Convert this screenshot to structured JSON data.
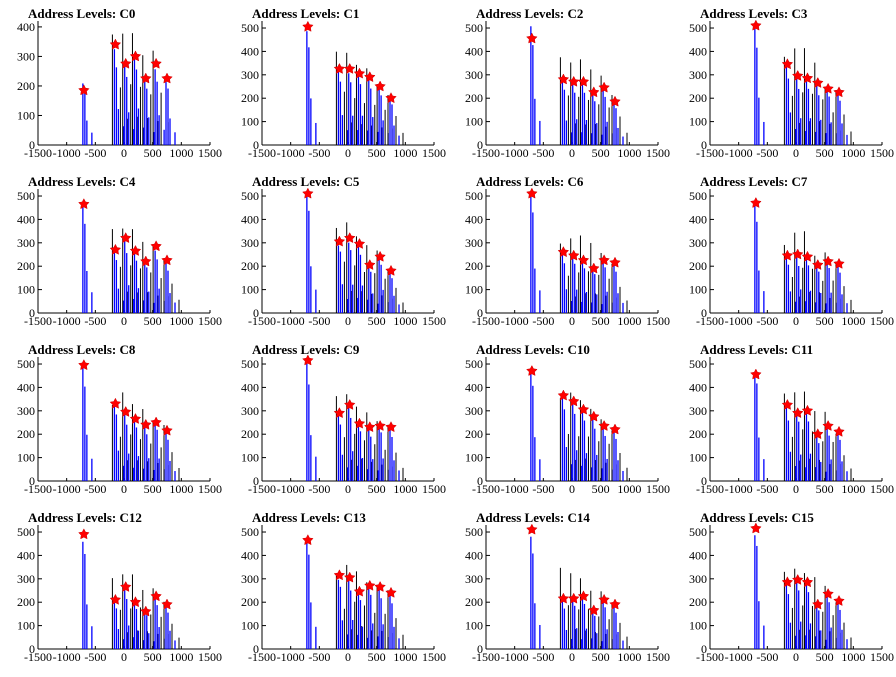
{
  "chart_data": [
    {
      "type": "bar",
      "title": "Address Levels: C0",
      "xlim": [
        -1500,
        1500
      ],
      "ylim": [
        0,
        420
      ],
      "yticks": [
        0,
        100,
        200,
        300,
        400
      ],
      "xticks": [
        -1500,
        -1000,
        -500,
        0,
        500,
        1000,
        1500
      ],
      "marker_x": [
        -700,
        -150,
        30,
        200,
        380,
        560,
        750
      ],
      "marker_y": [
        185,
        340,
        275,
        300,
        225,
        275,
        225
      ],
      "black_max": [
        0,
        380,
        395,
        380,
        335,
        330,
        0
      ],
      "blue_max": [
        215,
        330,
        280,
        310,
        235,
        270,
        230
      ]
    },
    {
      "type": "bar",
      "title": "Address Levels: C1",
      "xlim": [
        -1500,
        1500
      ],
      "ylim": [
        0,
        530
      ],
      "yticks": [
        0,
        100,
        200,
        300,
        400,
        500
      ],
      "xticks": [
        -1500,
        -1000,
        -500,
        0,
        500,
        1000,
        1500
      ],
      "marker_x": [
        -700,
        -150,
        30,
        200,
        380,
        560,
        750
      ],
      "marker_y": [
        505,
        325,
        325,
        305,
        290,
        250,
        200
      ],
      "black_max": [
        0,
        420,
        395,
        345,
        330,
        285,
        230
      ],
      "blue_max": [
        500,
        330,
        320,
        315,
        300,
        265,
        215
      ]
    },
    {
      "type": "bar",
      "title": "Address Levels: C2",
      "xlim": [
        -1500,
        1500
      ],
      "ylim": [
        0,
        530
      ],
      "yticks": [
        0,
        100,
        200,
        300,
        400,
        500
      ],
      "xticks": [
        -1500,
        -1000,
        -500,
        0,
        500,
        1000,
        1500
      ],
      "marker_x": [
        -700,
        -150,
        30,
        200,
        380,
        560,
        750
      ],
      "marker_y": [
        455,
        280,
        270,
        270,
        225,
        245,
        185
      ],
      "black_max": [
        0,
        410,
        375,
        370,
        330,
        310,
        225
      ],
      "blue_max": [
        520,
        280,
        285,
        270,
        235,
        255,
        195
      ]
    },
    {
      "type": "bar",
      "title": "Address Levels: C3",
      "xlim": [
        -1500,
        1500
      ],
      "ylim": [
        0,
        530
      ],
      "yticks": [
        0,
        100,
        200,
        300,
        400,
        500
      ],
      "xticks": [
        -1500,
        -1000,
        -500,
        0,
        500,
        1000,
        1500
      ],
      "marker_x": [
        -700,
        -150,
        30,
        200,
        380,
        560,
        750
      ],
      "marker_y": [
        510,
        345,
        295,
        285,
        265,
        240,
        225
      ],
      "black_max": [
        0,
        385,
        420,
        420,
        365,
        275,
        240
      ],
      "blue_max": [
        515,
        355,
        300,
        290,
        270,
        255,
        235
      ]
    },
    {
      "type": "bar",
      "title": "Address Levels: C4",
      "xlim": [
        -1500,
        1500
      ],
      "ylim": [
        0,
        530
      ],
      "yticks": [
        0,
        100,
        200,
        300,
        400,
        500
      ],
      "xticks": [
        -1500,
        -1000,
        -500,
        0,
        500,
        1000,
        1500
      ],
      "marker_x": [
        -700,
        -150,
        30,
        200,
        380,
        560,
        750
      ],
      "marker_y": [
        465,
        270,
        320,
        265,
        220,
        285,
        225
      ],
      "black_max": [
        0,
        380,
        390,
        365,
        320,
        300,
        230
      ],
      "blue_max": [
        480,
        275,
        315,
        270,
        230,
        280,
        225
      ]
    },
    {
      "type": "bar",
      "title": "Address Levels: C5",
      "xlim": [
        -1500,
        1500
      ],
      "ylim": [
        0,
        530
      ],
      "yticks": [
        0,
        100,
        200,
        300,
        400,
        500
      ],
      "xticks": [
        -1500,
        -1000,
        -500,
        0,
        500,
        1000,
        1500
      ],
      "marker_x": [
        -700,
        -150,
        30,
        200,
        380,
        560,
        750
      ],
      "marker_y": [
        510,
        305,
        320,
        295,
        205,
        240,
        180
      ],
      "black_max": [
        0,
        400,
        400,
        335,
        310,
        270,
        195
      ],
      "blue_max": [
        515,
        310,
        325,
        300,
        210,
        250,
        185
      ]
    },
    {
      "type": "bar",
      "title": "Address Levels: C6",
      "xlim": [
        -1500,
        1500
      ],
      "ylim": [
        0,
        530
      ],
      "yticks": [
        0,
        100,
        200,
        300,
        400,
        500
      ],
      "xticks": [
        -1500,
        -1000,
        -500,
        0,
        500,
        1000,
        1500
      ],
      "marker_x": [
        -700,
        -150,
        30,
        200,
        380,
        560,
        750
      ],
      "marker_y": [
        510,
        260,
        245,
        225,
        190,
        225,
        215
      ],
      "black_max": [
        0,
        305,
        350,
        340,
        325,
        275,
        225
      ],
      "blue_max": [
        515,
        265,
        250,
        230,
        200,
        235,
        220
      ]
    },
    {
      "type": "bar",
      "title": "Address Levels: C7",
      "xlim": [
        -1500,
        1500
      ],
      "ylim": [
        0,
        530
      ],
      "yticks": [
        0,
        100,
        200,
        300,
        400,
        500
      ],
      "xticks": [
        -1500,
        -1000,
        -500,
        0,
        500,
        1000,
        1500
      ],
      "marker_x": [
        -700,
        -150,
        30,
        200,
        380,
        560,
        750
      ],
      "marker_y": [
        470,
        245,
        250,
        240,
        205,
        220,
        210
      ],
      "black_max": [
        0,
        310,
        360,
        360,
        270,
        265,
        230
      ],
      "blue_max": [
        475,
        250,
        255,
        245,
        215,
        230,
        215
      ]
    },
    {
      "type": "bar",
      "title": "Address Levels: C8",
      "xlim": [
        -1500,
        1500
      ],
      "ylim": [
        0,
        530
      ],
      "yticks": [
        0,
        100,
        200,
        300,
        400,
        500
      ],
      "xticks": [
        -1500,
        -1000,
        -500,
        0,
        500,
        1000,
        1500
      ],
      "marker_x": [
        -700,
        -150,
        30,
        200,
        380,
        560,
        750
      ],
      "marker_y": [
        495,
        330,
        295,
        265,
        240,
        250,
        215
      ],
      "black_max": [
        0,
        360,
        380,
        340,
        310,
        280,
        245
      ],
      "blue_max": [
        500,
        335,
        300,
        275,
        245,
        260,
        220
      ]
    },
    {
      "type": "bar",
      "title": "Address Levels: C9",
      "xlim": [
        -1500,
        1500
      ],
      "ylim": [
        0,
        530
      ],
      "yticks": [
        0,
        100,
        200,
        300,
        400,
        500
      ],
      "xticks": [
        -1500,
        -1000,
        -500,
        0,
        500,
        1000,
        1500
      ],
      "marker_x": [
        -700,
        -150,
        30,
        200,
        380,
        560,
        750
      ],
      "marker_y": [
        515,
        290,
        325,
        245,
        230,
        235,
        230
      ],
      "black_max": [
        0,
        375,
        395,
        330,
        300,
        265,
        240
      ],
      "blue_max": [
        520,
        300,
        330,
        255,
        235,
        245,
        235
      ]
    },
    {
      "type": "bar",
      "title": "Address Levels: C10",
      "xlim": [
        -1500,
        1500
      ],
      "ylim": [
        0,
        530
      ],
      "yticks": [
        0,
        100,
        200,
        300,
        400,
        500
      ],
      "xticks": [
        -1500,
        -1000,
        -500,
        0,
        500,
        1000,
        1500
      ],
      "marker_x": [
        -700,
        -150,
        30,
        200,
        380,
        560,
        750
      ],
      "marker_y": [
        470,
        365,
        340,
        305,
        275,
        235,
        220
      ],
      "black_max": [
        0,
        380,
        385,
        360,
        320,
        290,
        235
      ],
      "blue_max": [
        480,
        370,
        345,
        310,
        280,
        245,
        225
      ]
    },
    {
      "type": "bar",
      "title": "Address Levels: C11",
      "xlim": [
        -1500,
        1500
      ],
      "ylim": [
        0,
        530
      ],
      "yticks": [
        0,
        100,
        200,
        300,
        400,
        500
      ],
      "xticks": [
        -1500,
        -1000,
        -500,
        0,
        500,
        1000,
        1500
      ],
      "marker_x": [
        -700,
        -150,
        30,
        200,
        380,
        560,
        750
      ],
      "marker_y": [
        455,
        325,
        290,
        300,
        200,
        235,
        210
      ],
      "black_max": [
        0,
        375,
        410,
        400,
        315,
        310,
        215
      ],
      "blue_max": [
        500,
        330,
        300,
        305,
        205,
        245,
        220
      ]
    },
    {
      "type": "bar",
      "title": "Address Levels: C12",
      "xlim": [
        -1500,
        1500
      ],
      "ylim": [
        0,
        530
      ],
      "yticks": [
        0,
        100,
        200,
        300,
        400,
        500
      ],
      "xticks": [
        -1500,
        -1000,
        -500,
        0,
        500,
        1000,
        1500
      ],
      "marker_x": [
        -700,
        -150,
        30,
        200,
        380,
        560,
        750
      ],
      "marker_y": [
        490,
        210,
        265,
        200,
        160,
        225,
        190
      ],
      "black_max": [
        0,
        315,
        330,
        335,
        270,
        260,
        210
      ],
      "blue_max": [
        495,
        215,
        270,
        205,
        170,
        235,
        195
      ]
    },
    {
      "type": "bar",
      "title": "Address Levels: C13",
      "xlim": [
        -1500,
        1500
      ],
      "ylim": [
        0,
        530
      ],
      "yticks": [
        0,
        100,
        200,
        300,
        400,
        500
      ],
      "xticks": [
        -1500,
        -1000,
        -500,
        0,
        500,
        1000,
        1500
      ],
      "marker_x": [
        -700,
        -150,
        30,
        200,
        380,
        560,
        750
      ],
      "marker_y": [
        465,
        315,
        305,
        245,
        270,
        265,
        240
      ],
      "black_max": [
        0,
        340,
        395,
        350,
        310,
        290,
        255
      ],
      "blue_max": [
        500,
        320,
        310,
        250,
        275,
        270,
        245
      ]
    },
    {
      "type": "bar",
      "title": "Address Levels: C14",
      "xlim": [
        -1500,
        1500
      ],
      "ylim": [
        0,
        530
      ],
      "yticks": [
        0,
        100,
        200,
        300,
        400,
        500
      ],
      "xticks": [
        -1500,
        -1000,
        -500,
        0,
        500,
        1000,
        1500
      ],
      "marker_x": [
        -700,
        -150,
        30,
        200,
        380,
        560,
        750
      ],
      "marker_y": [
        510,
        215,
        215,
        225,
        165,
        210,
        190
      ],
      "black_max": [
        0,
        350,
        340,
        320,
        275,
        250,
        215
      ],
      "blue_max": [
        515,
        220,
        225,
        230,
        170,
        220,
        195
      ]
    },
    {
      "type": "bar",
      "title": "Address Levels: C15",
      "xlim": [
        -1500,
        1500
      ],
      "ylim": [
        0,
        530
      ],
      "yticks": [
        0,
        100,
        200,
        300,
        400,
        500
      ],
      "xticks": [
        -1500,
        -1000,
        -500,
        0,
        500,
        1000,
        1500
      ],
      "marker_x": [
        -700,
        -150,
        30,
        200,
        380,
        560,
        750
      ],
      "marker_y": [
        515,
        285,
        295,
        285,
        190,
        235,
        205
      ],
      "black_max": [
        0,
        345,
        345,
        345,
        310,
        290,
        215
      ],
      "blue_max": [
        520,
        290,
        300,
        290,
        200,
        245,
        210
      ]
    }
  ],
  "colors": {
    "black_bars": "#000000",
    "blue_bars": "#0000ff",
    "marker": "#ff0000",
    "axis": "#000000"
  },
  "marker_icon": "red-star-icon"
}
